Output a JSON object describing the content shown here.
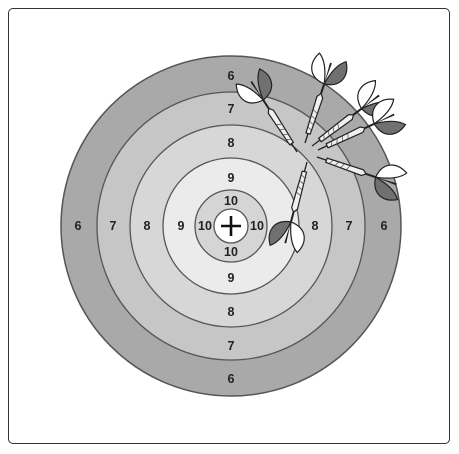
{
  "target": {
    "colors": {
      "ring6": "#a9a9a9",
      "ring7": "#c6c6c6",
      "ring8": "#d7d7d7",
      "ring9": "#ebebeb",
      "ring10": "#d5d5d5",
      "bull": "#ffffff",
      "stroke": "#555555"
    },
    "ring_labels": {
      "top": [
        "6",
        "7",
        "8",
        "9",
        "10"
      ],
      "bottom": [
        "10",
        "9",
        "8",
        "7",
        "6"
      ],
      "left": [
        "6",
        "7",
        "8",
        "9",
        "10"
      ],
      "right": [
        "10",
        "8",
        "7",
        "6"
      ]
    },
    "center_icon": "crosshair-plus-icon"
  },
  "darts": {
    "count": 6,
    "icon": "dart-icon",
    "colors": {
      "flight_dark": "#707070",
      "flight_light": "#ffffff",
      "barrel": "#f0f0f0",
      "outline": "#222222"
    }
  }
}
